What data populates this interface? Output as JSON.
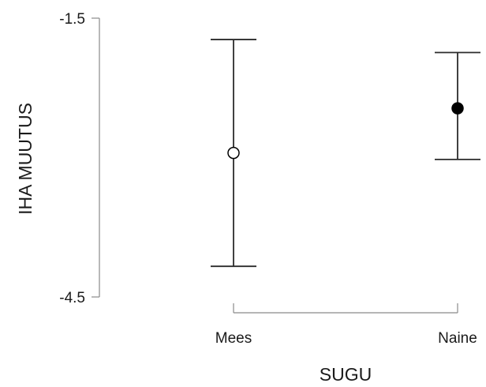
{
  "chart_data": {
    "type": "scatter",
    "title": "",
    "xlabel": "SUGU",
    "ylabel": "IHA MUUTUS",
    "categories": [
      "Mees",
      "Naine"
    ],
    "ylim": [
      -4.5,
      -1.5
    ],
    "yticks": [
      -1.5,
      -4.5
    ],
    "grid": false,
    "legend": "none",
    "points": [
      {
        "category": "Mees",
        "mean": -2.95,
        "lower": -4.17,
        "upper": -1.73,
        "marker": "open-circle",
        "color": "#000000"
      },
      {
        "category": "Naine",
        "mean": -2.47,
        "lower": -3.02,
        "upper": -1.87,
        "marker": "filled-circle",
        "color": "#000000"
      }
    ]
  }
}
